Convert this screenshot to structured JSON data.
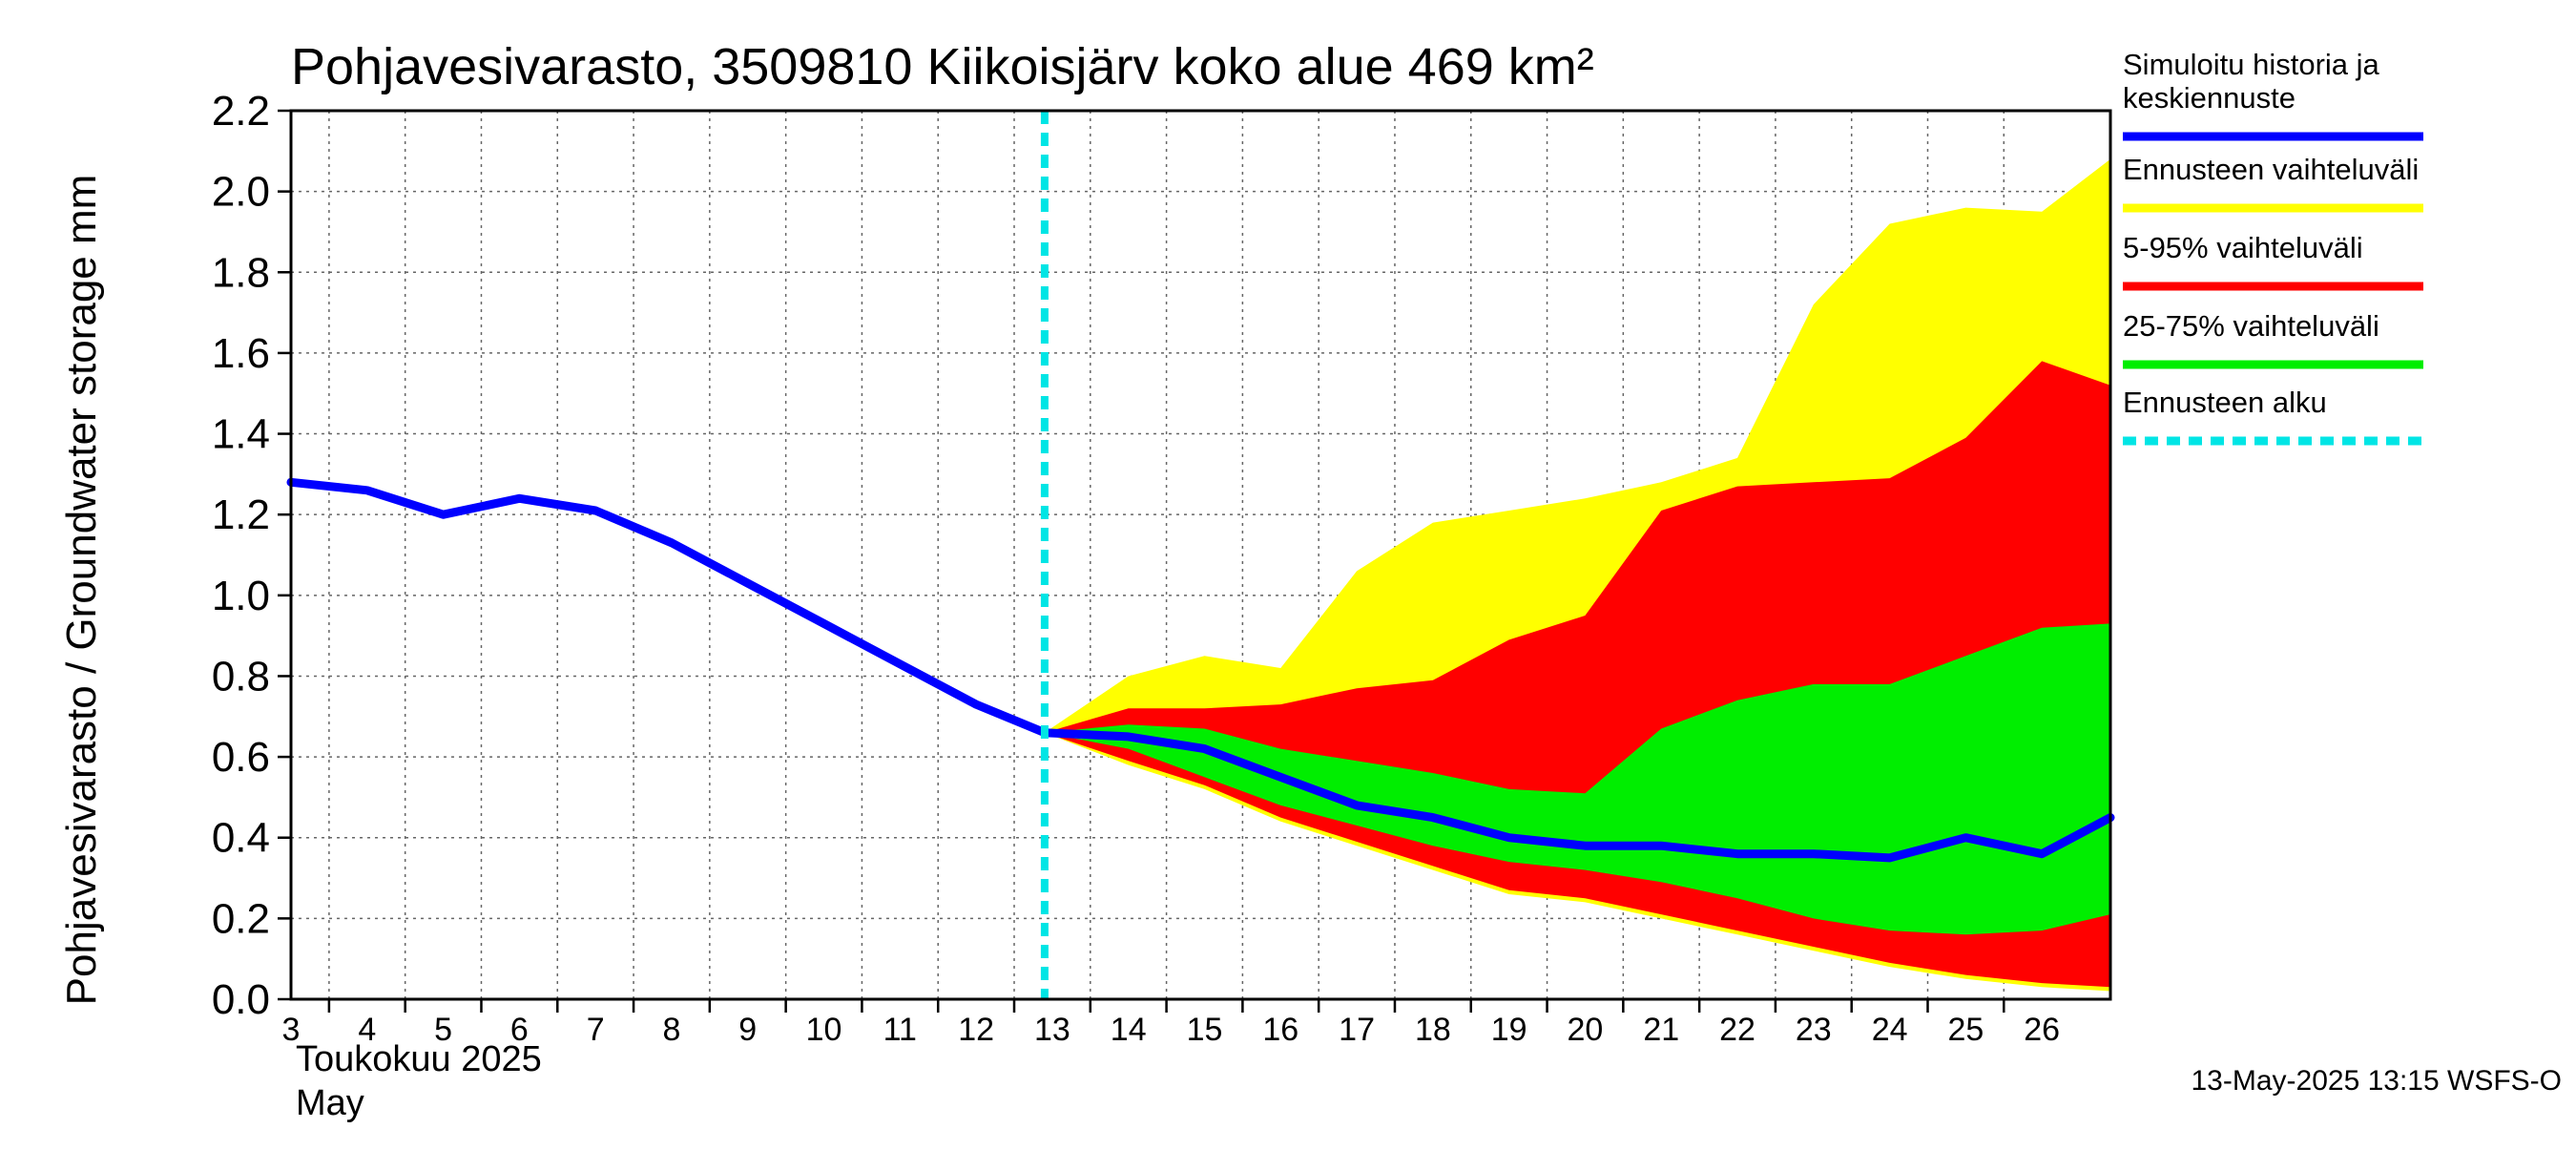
{
  "chart_data": {
    "type": "area",
    "title": "Pohjavesivarasto, 3509810 Kiikoisjärv koko alue 469 km²",
    "ylabel": "Pohjavesivarasto / Groundwater storage   mm",
    "ylim": [
      0.0,
      2.2
    ],
    "xlim": [
      3,
      26.9
    ],
    "grid": true,
    "y_ticks": [
      0.0,
      0.2,
      0.4,
      0.6,
      0.8,
      1.0,
      1.2,
      1.4,
      1.6,
      1.8,
      2.0,
      2.2
    ],
    "y_tick_labels": [
      "0.0",
      "0.2",
      "0.4",
      "0.6",
      "0.8",
      "1.0",
      "1.2",
      "1.4",
      "1.6",
      "1.8",
      "2.0",
      "2.2"
    ],
    "x_tick_labels": [
      "3",
      "4",
      "5",
      "6",
      "7",
      "8",
      "9",
      "10",
      "11",
      "12",
      "13",
      "14",
      "15",
      "16",
      "17",
      "18",
      "19",
      "20",
      "21",
      "22",
      "23",
      "24",
      "25",
      "26"
    ],
    "x_month_label_fi": "Toukokuu  2025",
    "x_month_label_en": "May",
    "forecast_start": 12.9,
    "series": [
      {
        "name": "Simuloitu historia ja keskiennuste",
        "color": "#0000ff",
        "x": [
          3,
          4,
          5,
          6,
          7,
          8,
          9,
          10,
          11,
          12,
          12.9,
          14,
          15,
          16,
          17,
          18,
          19,
          20,
          21,
          22,
          23,
          24,
          25,
          26,
          26.9
        ],
        "y": [
          1.28,
          1.26,
          1.2,
          1.24,
          1.21,
          1.13,
          1.03,
          0.93,
          0.83,
          0.73,
          0.66,
          0.65,
          0.62,
          0.55,
          0.48,
          0.45,
          0.4,
          0.38,
          0.38,
          0.36,
          0.36,
          0.35,
          0.4,
          0.36,
          0.45
        ]
      }
    ],
    "bands": [
      {
        "name": "Ennusteen vaihteluväli",
        "color": "#ffff00",
        "x": [
          12.9,
          14,
          15,
          16,
          17,
          18,
          19,
          20,
          21,
          22,
          23,
          24,
          25,
          26,
          26.9
        ],
        "upper": [
          0.66,
          0.8,
          0.85,
          0.82,
          1.06,
          1.18,
          1.21,
          1.24,
          1.28,
          1.34,
          1.72,
          1.92,
          1.96,
          1.95,
          2.08
        ],
        "lower": [
          0.66,
          0.58,
          0.52,
          0.44,
          0.38,
          0.32,
          0.26,
          0.24,
          0.2,
          0.16,
          0.12,
          0.08,
          0.05,
          0.03,
          0.02
        ]
      },
      {
        "name": "5-95% vaihteluväli",
        "color": "#ff0000",
        "x": [
          12.9,
          14,
          15,
          16,
          17,
          18,
          19,
          20,
          21,
          22,
          23,
          24,
          25,
          26,
          26.9
        ],
        "upper": [
          0.66,
          0.72,
          0.72,
          0.73,
          0.77,
          0.79,
          0.89,
          0.95,
          1.21,
          1.27,
          1.28,
          1.29,
          1.39,
          1.58,
          1.52
        ],
        "lower": [
          0.66,
          0.59,
          0.53,
          0.45,
          0.39,
          0.33,
          0.27,
          0.25,
          0.21,
          0.17,
          0.13,
          0.09,
          0.06,
          0.04,
          0.03
        ]
      },
      {
        "name": "25-75% vaihteluväli",
        "color": "#00ee00",
        "x": [
          12.9,
          14,
          15,
          16,
          17,
          18,
          19,
          20,
          21,
          22,
          23,
          24,
          25,
          26,
          26.9
        ],
        "upper": [
          0.66,
          0.68,
          0.67,
          0.62,
          0.59,
          0.56,
          0.52,
          0.51,
          0.67,
          0.74,
          0.78,
          0.78,
          0.85,
          0.92,
          0.93
        ],
        "lower": [
          0.66,
          0.62,
          0.55,
          0.48,
          0.43,
          0.38,
          0.34,
          0.32,
          0.29,
          0.25,
          0.2,
          0.17,
          0.16,
          0.17,
          0.21
        ]
      }
    ],
    "forecast_marker": {
      "name": "Ennusteen alku",
      "color": "#00e5e5"
    },
    "legend_position": "right",
    "footer": "13-May-2025 13:15 WSFS-O"
  },
  "legend": {
    "items": [
      {
        "label_lines": [
          "Simuloitu historia ja",
          "keskiennuste"
        ],
        "color": "#0000ff",
        "style": "solid"
      },
      {
        "label_lines": [
          "Ennusteen vaihteluväli"
        ],
        "color": "#ffff00",
        "style": "solid"
      },
      {
        "label_lines": [
          "5-95% vaihteluväli"
        ],
        "color": "#ff0000",
        "style": "solid"
      },
      {
        "label_lines": [
          "25-75% vaihteluväli"
        ],
        "color": "#00ee00",
        "style": "solid"
      },
      {
        "label_lines": [
          "Ennusteen alku"
        ],
        "color": "#00e5e5",
        "style": "dashed"
      }
    ]
  }
}
